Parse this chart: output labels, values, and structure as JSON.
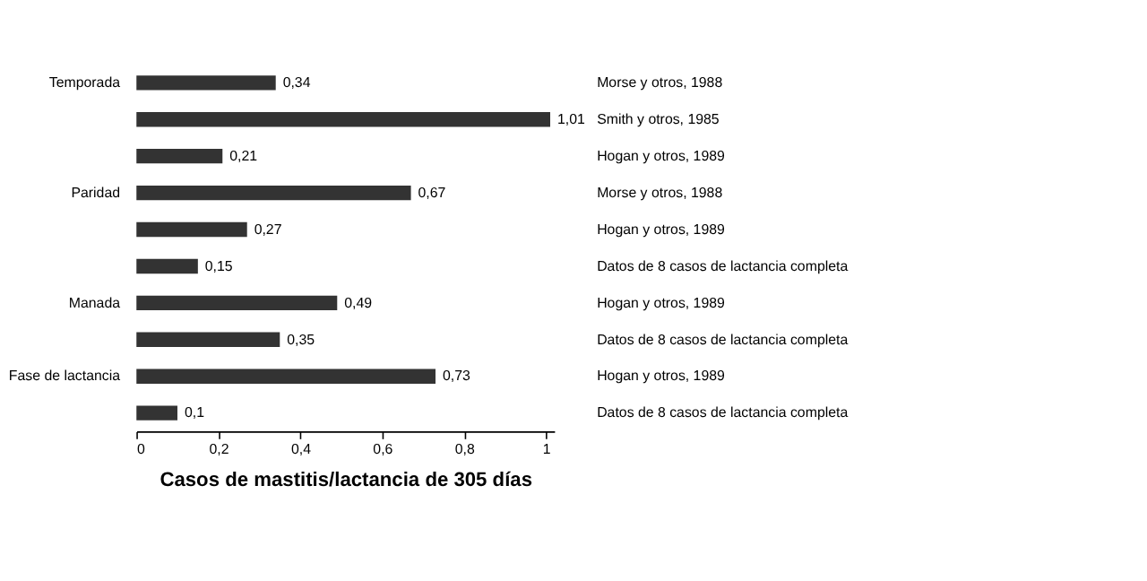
{
  "chart_data": {
    "type": "bar",
    "orientation": "horizontal",
    "xlabel": "Casos de mastitis/lactancia de 305 días",
    "categories": [
      "Temporada",
      null,
      null,
      "Paridad",
      null,
      null,
      "Manada",
      null,
      "Fase de lactancia",
      null
    ],
    "values": [
      0.34,
      1.01,
      0.21,
      0.67,
      0.27,
      0.15,
      0.49,
      0.35,
      0.73,
      0.1
    ],
    "value_labels": [
      "0,34",
      "1,01",
      "0,21",
      "0,67",
      "0,27",
      "0,15",
      "0,49",
      "0,35",
      "0,73",
      "0,1"
    ],
    "color": "#333333",
    "xlim": [
      0,
      1.02
    ],
    "xticks": [
      0,
      {
        "value": 0.2,
        "label": "0,2"
      },
      {
        "value": 0.4,
        "label": "0,4"
      },
      {
        "value": 0.6,
        "label": "0,6"
      },
      {
        "value": 0.8,
        "label": "0,8"
      },
      1
    ],
    "grid": false,
    "annotations": [
      "Morse y otros, 1988",
      "Smith y otros, 1985",
      "Hogan y otros, 1989",
      "Morse y otros, 1988",
      "Hogan y otros, 1989",
      "Datos de 8 casos de lactancia completa",
      "Hogan y otros, 1989",
      "Datos de 8 casos de lactancia completa",
      "Hogan y otros, 1989",
      "Datos de 8 casos de lactancia completa"
    ]
  }
}
